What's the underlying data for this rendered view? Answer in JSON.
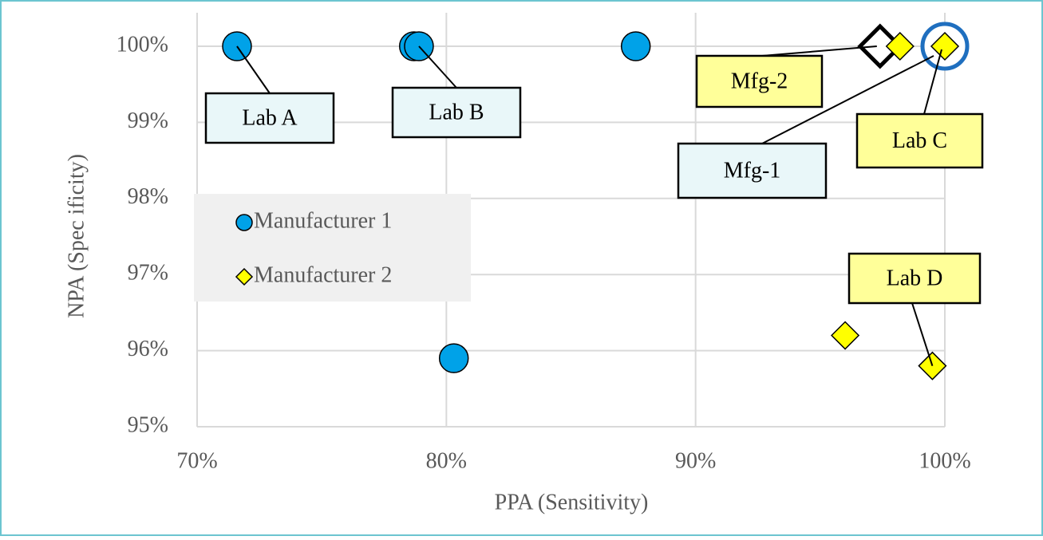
{
  "chart_data": {
    "type": "scatter",
    "x_label": "PPA (Sensitivity)",
    "y_label": "NPA (Spec ificity)",
    "xlim": [
      70,
      100
    ],
    "ylim": [
      95,
      100
    ],
    "xticks": [
      {
        "value": 70,
        "label": "70%"
      },
      {
        "value": 80,
        "label": "80%"
      },
      {
        "value": 90,
        "label": "90%"
      },
      {
        "value": 100,
        "label": "100%"
      }
    ],
    "yticks": [
      {
        "value": 95,
        "label": "95%"
      },
      {
        "value": 96,
        "label": "96%"
      },
      {
        "value": 97,
        "label": "97%"
      },
      {
        "value": 98,
        "label": "98%"
      },
      {
        "value": 99,
        "label": "99%"
      },
      {
        "value": 100,
        "label": "100%"
      }
    ],
    "grid": true,
    "series": [
      {
        "name": "Manufacturer 1",
        "marker": "circle",
        "color": "#00a2e8",
        "x": [
          71.6,
          78.7,
          78.9,
          87.6,
          80.3
        ],
        "values": [
          100,
          100,
          100,
          100,
          95.9
        ]
      },
      {
        "name": "Manufacturer 2",
        "marker": "diamond",
        "color": "#ffff00",
        "x": [
          98.2,
          100,
          96.0,
          99.5
        ],
        "values": [
          100,
          100,
          96.2,
          95.8
        ]
      }
    ],
    "annotations": [
      {
        "text": "Lab A",
        "x": 71.6,
        "y": 100,
        "color": "#e9f7f9"
      },
      {
        "text": "Lab B",
        "x": 78.9,
        "y": 100,
        "color": "#e9f7f9"
      },
      {
        "text": "Mfg-2",
        "x": 97.4,
        "y": 100,
        "color": "#ffff99",
        "marker": "diamond"
      },
      {
        "text": "Lab C",
        "x": 100,
        "y": 100,
        "color": "#ffff99"
      },
      {
        "text": "Mfg-1",
        "x": 100,
        "y": 100,
        "color": "#e9f7f9",
        "marker": "circle"
      },
      {
        "text": "Lab D",
        "x": 99.5,
        "y": 95.8,
        "color": "#ffff99"
      }
    ]
  }
}
